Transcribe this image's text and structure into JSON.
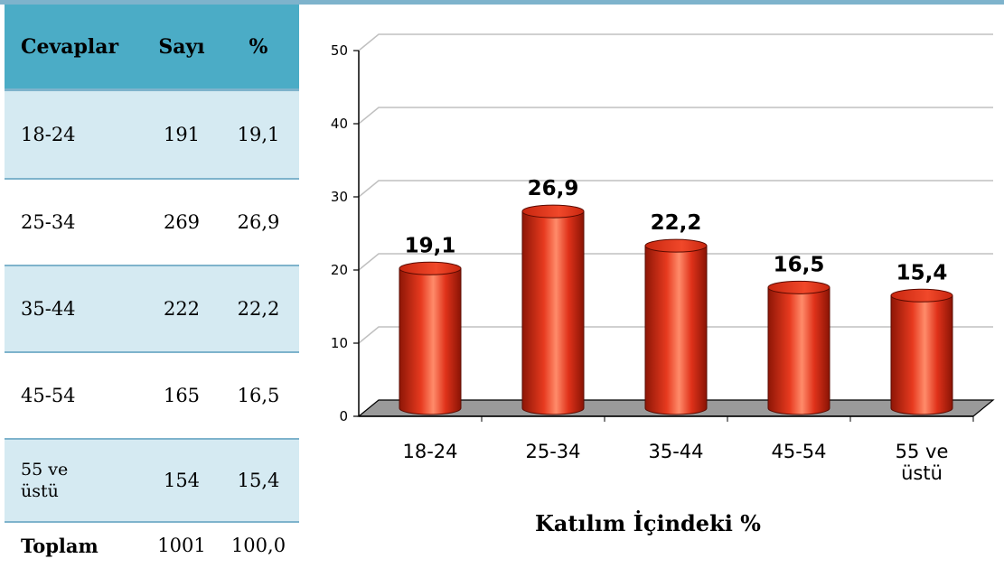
{
  "table": {
    "headers": [
      "Cevaplar",
      "Sayı",
      "%"
    ],
    "rows": [
      {
        "label": "18-24",
        "count": "191",
        "pct": "19,1"
      },
      {
        "label": "25-34",
        "count": "269",
        "pct": "26,9"
      },
      {
        "label": "35-44",
        "count": "222",
        "pct": "22,2"
      },
      {
        "label": "45-54",
        "count": "165",
        "pct": "16,5"
      },
      {
        "label_line1": "55 ve",
        "label_line2": "üstü",
        "count": "154",
        "pct": "15,4"
      }
    ],
    "total": {
      "label": "Toplam",
      "count": "1001",
      "pct": "100,0"
    }
  },
  "colors": {
    "header_bg": "#4bacc6",
    "row_shade": "#d5eaf2",
    "bar": "#e3301a",
    "floor": "#9a9a9a"
  },
  "chart_data": {
    "type": "bar",
    "categories": [
      "18-24",
      "25-34",
      "35-44",
      "45-54",
      "55 ve üstü"
    ],
    "category_lines": [
      [
        "18-24"
      ],
      [
        "25-34"
      ],
      [
        "35-44"
      ],
      [
        "45-54"
      ],
      [
        "55 ve",
        "üstü"
      ]
    ],
    "values": [
      19.1,
      26.9,
      22.2,
      16.5,
      15.4
    ],
    "value_labels": [
      "19,1",
      "26,9",
      "22,2",
      "16,5",
      "15,4"
    ],
    "y_ticks": [
      "0",
      "10",
      "20",
      "30",
      "40",
      "50"
    ],
    "ylim": [
      0,
      50
    ],
    "xlabel": "Katılım İçindeki %",
    "ylabel": "",
    "title": "",
    "grid": true,
    "style": "3d-cylinder"
  }
}
